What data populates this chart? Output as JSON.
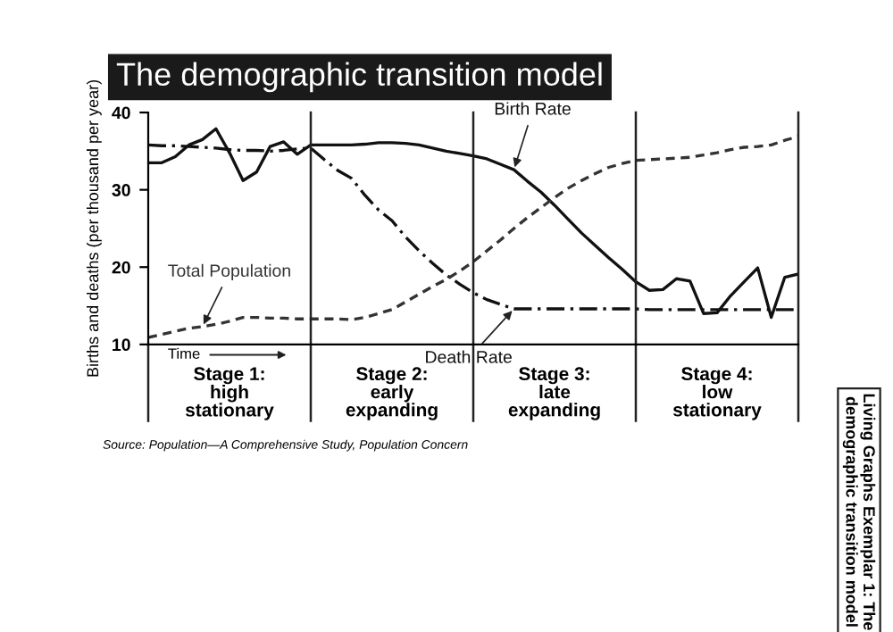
{
  "chart_data": {
    "type": "line",
    "title": "The demographic transition model",
    "ylabel": "Births and deaths (per thousand per year)",
    "categories": [
      null,
      null,
      null,
      null,
      null,
      null,
      "Stage 1:\nhigh\nstationary",
      null,
      null,
      null,
      null,
      null,
      null,
      null,
      null,
      null,
      null,
      null,
      "Stage 2:\nearly\nexpanding",
      null,
      null,
      null,
      null,
      null,
      null,
      null,
      null,
      null,
      null,
      null,
      "Stage 3:\nlate\nexpanding",
      null,
      null,
      null,
      null,
      null,
      null,
      null,
      null,
      null,
      null,
      null,
      "Stage 4:\nlow\nstationary",
      null,
      null,
      null,
      null,
      null,
      null
    ],
    "ylim": [
      10,
      40
    ],
    "yticks": [
      10,
      20,
      30,
      40
    ],
    "grid": "x",
    "marker": "none",
    "series": [
      {
        "name": "Birth Rate",
        "color": "#111111",
        "line_style": "solid",
        "values": [
          33.5,
          33.5,
          34.3,
          35.8,
          36.5,
          37.9,
          34.8,
          31.2,
          32.3,
          35.6,
          36.2,
          34.6,
          35.8,
          35.8,
          35.8,
          35.8,
          35.9,
          36.1,
          36.1,
          36.0,
          35.8,
          35.4,
          35.0,
          34.7,
          34.4,
          34.0,
          33.3,
          32.6,
          31.1,
          29.7,
          28.0,
          26.2,
          24.4,
          22.8,
          21.2,
          19.7,
          18.1,
          17.0,
          17.1,
          18.5,
          18.2,
          14.0,
          14.1,
          16.3,
          18.1,
          19.9,
          13.5,
          18.7,
          19.1
        ]
      },
      {
        "name": "Death Rate",
        "color": "#111111",
        "line_style": "dashdot",
        "values": [
          35.8,
          35.7,
          35.7,
          35.6,
          35.5,
          35.4,
          35.2,
          35.1,
          35.1,
          35.0,
          35.1,
          35.3,
          35.4,
          33.9,
          32.5,
          31.5,
          29.3,
          27.4,
          26.0,
          23.9,
          22.1,
          20.5,
          19.0,
          17.8,
          16.7,
          15.8,
          15.2,
          14.6,
          14.6,
          14.6,
          14.6,
          14.6,
          14.6,
          14.6,
          14.6,
          14.6,
          14.6,
          14.5,
          14.5,
          14.5,
          14.5,
          14.5,
          14.5,
          14.5,
          14.5,
          14.5,
          14.5,
          14.5,
          14.5
        ]
      },
      {
        "name": "Total Population",
        "color": "#333333",
        "line_style": "dashed",
        "values": [
          10.9,
          11.3,
          11.7,
          12.1,
          12.3,
          12.6,
          13.0,
          13.5,
          13.5,
          13.4,
          13.4,
          13.3,
          13.3,
          13.3,
          13.3,
          13.2,
          13.5,
          14.0,
          14.5,
          15.5,
          16.5,
          17.5,
          18.4,
          19.5,
          20.7,
          22.1,
          23.5,
          25.0,
          26.4,
          27.7,
          29.0,
          30.2,
          31.2,
          32.1,
          32.9,
          33.4,
          33.8,
          33.9,
          34.0,
          34.1,
          34.2,
          34.5,
          34.8,
          35.2,
          35.5,
          35.6,
          35.8,
          36.4,
          36.9
        ]
      }
    ],
    "annotations": [
      "Time",
      "Source: Population—A Comprehensive Study, Population Concern",
      "Living Graphs Exemplar 1: The demographic transition model"
    ]
  }
}
